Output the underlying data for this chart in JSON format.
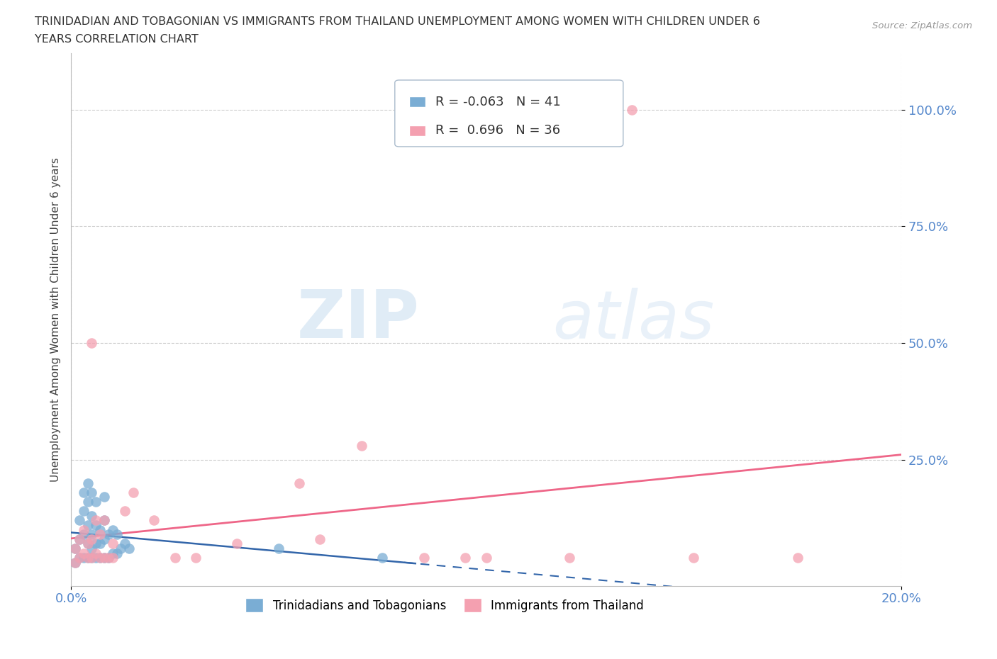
{
  "title_line1": "TRINIDADIAN AND TOBAGONIAN VS IMMIGRANTS FROM THAILAND UNEMPLOYMENT AMONG WOMEN WITH CHILDREN UNDER 6",
  "title_line2": "YEARS CORRELATION CHART",
  "source": "Source: ZipAtlas.com",
  "xlim": [
    0.0,
    0.2
  ],
  "ylim": [
    -0.02,
    1.12
  ],
  "ytick_vals": [
    0.25,
    0.5,
    0.75,
    1.0
  ],
  "xtick_vals": [
    0.0,
    0.2
  ],
  "series1_label": "Trinidadians and Tobagonians",
  "series2_label": "Immigrants from Thailand",
  "series1_color": "#7aadd4",
  "series2_color": "#f4a0b0",
  "series1_line_color": "#3366aa",
  "series2_line_color": "#ee6688",
  "legend_r1": "R = -0.063",
  "legend_n1": "N = 41",
  "legend_r2": "R =  0.696",
  "legend_n2": "N = 36",
  "series1_x": [
    0.001,
    0.001,
    0.002,
    0.002,
    0.002,
    0.003,
    0.003,
    0.003,
    0.003,
    0.004,
    0.004,
    0.004,
    0.004,
    0.004,
    0.005,
    0.005,
    0.005,
    0.005,
    0.005,
    0.006,
    0.006,
    0.006,
    0.006,
    0.007,
    0.007,
    0.007,
    0.008,
    0.008,
    0.008,
    0.008,
    0.009,
    0.009,
    0.01,
    0.01,
    0.011,
    0.011,
    0.012,
    0.013,
    0.014,
    0.05,
    0.075
  ],
  "series1_y": [
    0.03,
    0.06,
    0.04,
    0.08,
    0.12,
    0.04,
    0.09,
    0.14,
    0.18,
    0.04,
    0.07,
    0.11,
    0.16,
    0.2,
    0.04,
    0.06,
    0.09,
    0.13,
    0.18,
    0.04,
    0.07,
    0.11,
    0.16,
    0.04,
    0.07,
    0.1,
    0.04,
    0.08,
    0.12,
    0.17,
    0.04,
    0.09,
    0.05,
    0.1,
    0.05,
    0.09,
    0.06,
    0.07,
    0.06,
    0.06,
    0.04
  ],
  "series2_x": [
    0.001,
    0.001,
    0.002,
    0.002,
    0.003,
    0.003,
    0.004,
    0.004,
    0.005,
    0.005,
    0.005,
    0.006,
    0.006,
    0.007,
    0.007,
    0.008,
    0.008,
    0.009,
    0.01,
    0.01,
    0.013,
    0.015,
    0.02,
    0.025,
    0.03,
    0.04,
    0.055,
    0.06,
    0.07,
    0.085,
    0.095,
    0.1,
    0.12,
    0.135,
    0.15,
    0.175
  ],
  "series2_y": [
    0.03,
    0.06,
    0.04,
    0.08,
    0.05,
    0.1,
    0.04,
    0.07,
    0.04,
    0.08,
    0.5,
    0.05,
    0.12,
    0.04,
    0.09,
    0.04,
    0.12,
    0.04,
    0.04,
    0.07,
    0.14,
    0.18,
    0.12,
    0.04,
    0.04,
    0.07,
    0.2,
    0.08,
    0.28,
    0.04,
    0.04,
    0.04,
    0.04,
    1.0,
    0.04,
    0.04
  ],
  "background_color": "#ffffff",
  "grid_color": "#cccccc",
  "axis_color": "#5588cc",
  "ylabel": "Unemployment Among Women with Children Under 6 years",
  "watermark_zip": "ZIP",
  "watermark_atlas": "atlas"
}
